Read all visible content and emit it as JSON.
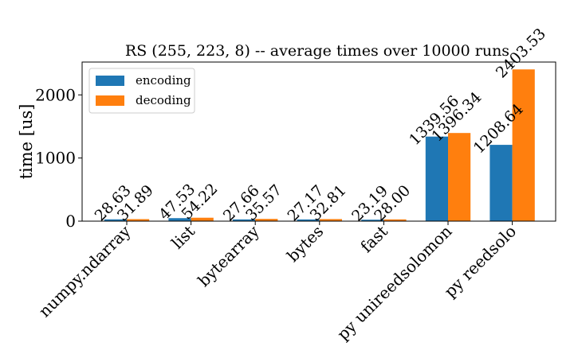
{
  "chart_data": {
    "type": "bar",
    "title": "RS (255, 223, 8) -- average times over 10000 runs",
    "xlabel": "",
    "ylabel": "time [us]",
    "ylim": [
      0,
      2520
    ],
    "yticks": [
      0,
      1000,
      2000
    ],
    "categories": [
      "numpy.ndarray",
      "list",
      "bytearray",
      "bytes",
      "fast",
      "py unireedsolomon",
      "py reedsolo"
    ],
    "series": [
      {
        "name": "encoding",
        "color": "#1f77b4",
        "values": [
          28.63,
          47.53,
          27.66,
          27.17,
          23.19,
          1339.56,
          1208.64
        ],
        "labels": [
          "28.63",
          "47.53",
          "27.66",
          "27.17",
          "23.19",
          "1339.56",
          "1208.64"
        ]
      },
      {
        "name": "decoding",
        "color": "#ff7f0e",
        "values": [
          31.89,
          54.22,
          35.57,
          32.81,
          28.0,
          1396.34,
          2403.53
        ],
        "labels": [
          "31.89",
          "54.22",
          "35.57",
          "32.81",
          "28.00",
          "1396.34",
          "2403.53"
        ]
      }
    ],
    "legend_position": "upper-left",
    "grid": false
  }
}
